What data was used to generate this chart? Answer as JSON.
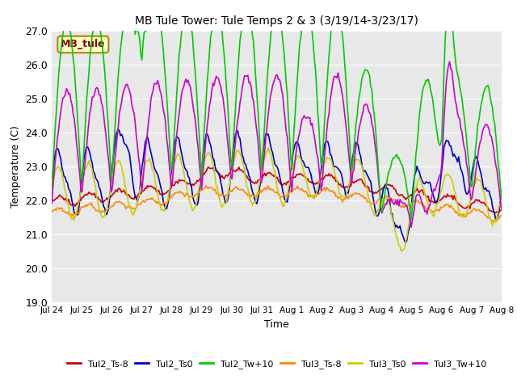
{
  "title": "MB Tule Tower: Tule Temps 2 & 3 (3/19/14-3/23/17)",
  "xlabel": "Time",
  "ylabel": "Temperature (C)",
  "ylim": [
    19.0,
    27.0
  ],
  "yticks": [
    19.0,
    20.0,
    21.0,
    22.0,
    23.0,
    24.0,
    25.0,
    26.0,
    27.0
  ],
  "xtick_labels": [
    "Jul 24",
    "Jul 25",
    "Jul 26",
    "Jul 27",
    "Jul 28",
    "Jul 29",
    "Jul 30",
    "Jul 31",
    "Aug 1",
    "Aug 2",
    "Aug 3",
    "Aug 4",
    "Aug 5",
    "Aug 6",
    "Aug 7",
    "Aug 8"
  ],
  "series_colors": {
    "Tul2_Ts-8": "#cc0000",
    "Tul2_Ts0": "#0000cc",
    "Tul2_Tw+10": "#00cc00",
    "Tul3_Ts-8": "#ff8800",
    "Tul3_Ts0": "#cccc00",
    "Tul3_Tw+10": "#cc00cc"
  },
  "legend_labels": [
    "Tul2_Ts-8",
    "Tul2_Ts0",
    "Tul2_Tw+10",
    "Tul3_Ts-8",
    "Tul3_Ts0",
    "Tul3_Tw+10"
  ],
  "plot_bg_color": "#e8e8e8",
  "annotation_text": "MB_tule",
  "annotation_bg": "#ffffcc",
  "annotation_border": "#aa8800"
}
